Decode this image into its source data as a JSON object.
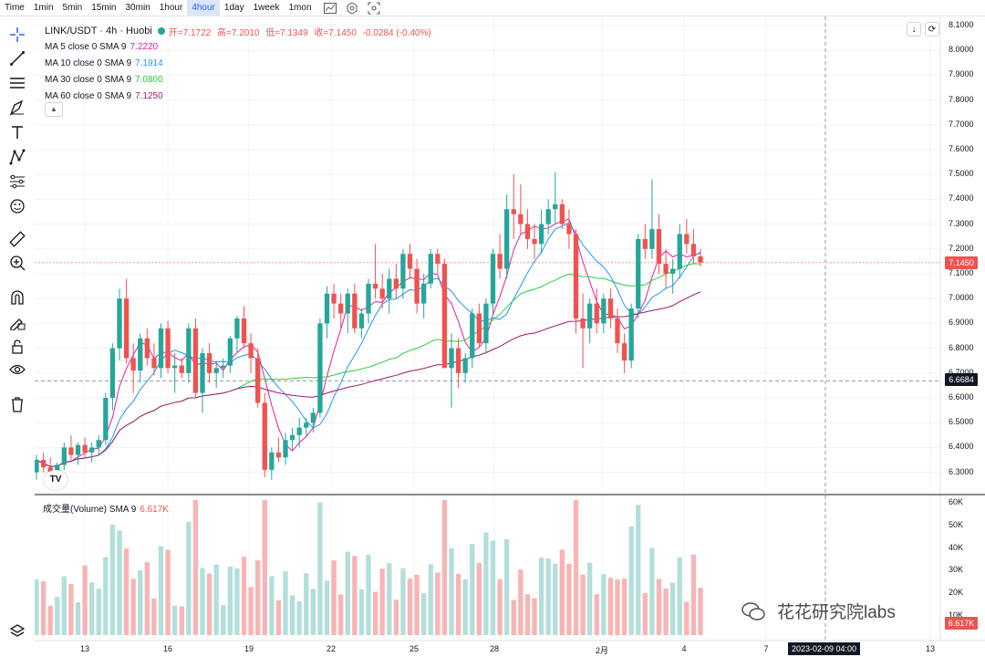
{
  "timeframes": [
    "Time",
    "1min",
    "5min",
    "15min",
    "30min",
    "1hour",
    "4hour",
    "1day",
    "1week",
    "1mon"
  ],
  "active_timeframe": "4hour",
  "toolbar_icons": [
    "indicator-icon",
    "settings-icon",
    "fullscreen-icon"
  ],
  "left_tools": [
    "crosshair-icon",
    "trendline-icon",
    "horizontal-lines-icon",
    "brush-icon",
    "text-icon",
    "pattern-icon",
    "fib-icon",
    "emoji-icon",
    "ruler-icon",
    "zoom-in-icon",
    "magnet-icon",
    "lock-drawing-icon",
    "lock-icon",
    "eye-icon",
    "trash-icon"
  ],
  "legend": {
    "symbol": "LINK/USDT · 4h · Huobi",
    "open": "开=7.1722",
    "high": "高=7.2010",
    "low": "低=7.1349",
    "close": "收=7.1450",
    "change": "-0.0284 (-0.40%)"
  },
  "moving_averages": [
    {
      "label": "MA 5 close 0 SMA 9",
      "value": "7.2220",
      "color": "#e91e9c"
    },
    {
      "label": "MA 10 close 0 SMA 9",
      "value": "7.1914",
      "color": "#2196f3"
    },
    {
      "label": "MA 30 close 0 SMA 9",
      "value": "7.0800",
      "color": "#2ecc40"
    },
    {
      "label": "MA 60 close 0 SMA 9",
      "value": "7.1250",
      "color": "#a0196e"
    }
  ],
  "volume_legend": {
    "label": "成交量(Volume) SMA 9",
    "value": "6.617K"
  },
  "price_axis": [
    "8.1000",
    "8.0000",
    "7.9000",
    "7.8000",
    "7.7000",
    "7.6000",
    "7.5000",
    "7.4000",
    "7.3000",
    "7.2000",
    "7.1000",
    "7.0000",
    "6.9000",
    "6.8000",
    "6.7000",
    "6.6000",
    "6.5000",
    "6.4000",
    "6.3000"
  ],
  "volume_axis": [
    "60K",
    "50K",
    "40K",
    "30K",
    "20K",
    "10K"
  ],
  "current_price_tag": "7.1450",
  "crosshair_price_tag": "6.6684",
  "volume_tag": "6.617K",
  "x_axis_labels": [
    "13",
    "16",
    "19",
    "22",
    "25",
    "28",
    "2月",
    "4",
    "7",
    "13"
  ],
  "crosshair_date": "2023-02-09   04:00",
  "watermark": "花花研究院labs",
  "colors": {
    "up": "#26a69a",
    "down": "#ef5350",
    "up_vol": "#b2dfdb",
    "down_vol": "#f8b4b4"
  },
  "chart_data": {
    "type": "candlestick",
    "series_ohlc": [
      [
        6.3,
        6.37,
        6.27,
        6.35
      ],
      [
        6.35,
        6.38,
        6.3,
        6.32
      ],
      [
        6.32,
        6.36,
        6.28,
        6.3
      ],
      [
        6.3,
        6.34,
        6.25,
        6.33
      ],
      [
        6.33,
        6.42,
        6.31,
        6.4
      ],
      [
        6.4,
        6.45,
        6.35,
        6.37
      ],
      [
        6.37,
        6.42,
        6.33,
        6.41
      ],
      [
        6.41,
        6.44,
        6.36,
        6.38
      ],
      [
        6.38,
        6.42,
        6.34,
        6.4
      ],
      [
        6.4,
        6.45,
        6.37,
        6.43
      ],
      [
        6.43,
        6.62,
        6.41,
        6.6
      ],
      [
        6.6,
        6.82,
        6.55,
        6.8
      ],
      [
        6.8,
        7.04,
        6.75,
        7.0
      ],
      [
        7.0,
        7.08,
        6.74,
        6.76
      ],
      [
        6.76,
        6.82,
        6.62,
        6.71
      ],
      [
        6.71,
        6.86,
        6.66,
        6.84
      ],
      [
        6.84,
        6.88,
        6.73,
        6.76
      ],
      [
        6.76,
        6.82,
        6.69,
        6.72
      ],
      [
        6.72,
        6.9,
        6.68,
        6.88
      ],
      [
        6.88,
        6.91,
        6.7,
        6.72
      ],
      [
        6.72,
        6.78,
        6.62,
        6.73
      ],
      [
        6.73,
        6.76,
        6.68,
        6.7
      ],
      [
        6.7,
        6.9,
        6.66,
        6.88
      ],
      [
        6.88,
        6.92,
        6.6,
        6.62
      ],
      [
        6.62,
        6.8,
        6.54,
        6.78
      ],
      [
        6.78,
        6.82,
        6.66,
        6.7
      ],
      [
        6.7,
        6.75,
        6.64,
        6.72
      ],
      [
        6.72,
        6.76,
        6.68,
        6.73
      ],
      [
        6.73,
        6.85,
        6.7,
        6.84
      ],
      [
        6.84,
        6.93,
        6.78,
        6.92
      ],
      [
        6.92,
        6.97,
        6.8,
        6.82
      ],
      [
        6.82,
        6.86,
        6.7,
        6.76
      ],
      [
        6.76,
        6.8,
        6.56,
        6.58
      ],
      [
        6.58,
        6.62,
        6.28,
        6.31
      ],
      [
        6.31,
        6.4,
        6.27,
        6.38
      ],
      [
        6.38,
        6.44,
        6.34,
        6.36
      ],
      [
        6.36,
        6.46,
        6.33,
        6.43
      ],
      [
        6.43,
        6.48,
        6.39,
        6.45
      ],
      [
        6.45,
        6.52,
        6.4,
        6.48
      ],
      [
        6.48,
        6.52,
        6.44,
        6.5
      ],
      [
        6.5,
        6.56,
        6.46,
        6.54
      ],
      [
        6.54,
        6.92,
        6.52,
        6.9
      ],
      [
        6.9,
        7.05,
        6.84,
        7.02
      ],
      [
        7.02,
        7.06,
        6.92,
        6.98
      ],
      [
        6.98,
        7.02,
        6.88,
        6.94
      ],
      [
        6.94,
        7.04,
        6.86,
        7.02
      ],
      [
        7.02,
        7.06,
        6.86,
        6.88
      ],
      [
        6.88,
        6.96,
        6.84,
        6.94
      ],
      [
        6.94,
        7.08,
        6.9,
        7.06
      ],
      [
        7.06,
        7.22,
        7.0,
        7.04
      ],
      [
        7.04,
        7.1,
        6.96,
        7.0
      ],
      [
        7.0,
        7.12,
        6.94,
        7.08
      ],
      [
        7.08,
        7.14,
        7.0,
        7.04
      ],
      [
        7.04,
        7.2,
        7.0,
        7.18
      ],
      [
        7.18,
        7.22,
        7.08,
        7.12
      ],
      [
        7.12,
        7.16,
        6.94,
        6.98
      ],
      [
        6.98,
        7.1,
        6.92,
        7.06
      ],
      [
        7.06,
        7.2,
        7.04,
        7.18
      ],
      [
        7.18,
        7.2,
        7.1,
        7.14
      ],
      [
        7.14,
        7.16,
        6.72,
        6.72
      ],
      [
        6.72,
        6.86,
        6.56,
        6.8
      ],
      [
        6.8,
        6.84,
        6.64,
        6.7
      ],
      [
        6.7,
        6.78,
        6.66,
        6.76
      ],
      [
        6.76,
        6.96,
        6.72,
        6.94
      ],
      [
        6.94,
        6.98,
        6.8,
        6.82
      ],
      [
        6.82,
        7.0,
        6.78,
        6.98
      ],
      [
        6.98,
        7.2,
        6.94,
        7.18
      ],
      [
        7.18,
        7.26,
        7.08,
        7.12
      ],
      [
        7.12,
        7.42,
        7.08,
        7.36
      ],
      [
        7.36,
        7.5,
        7.24,
        7.34
      ],
      [
        7.34,
        7.46,
        7.26,
        7.3
      ],
      [
        7.3,
        7.36,
        7.2,
        7.24
      ],
      [
        7.24,
        7.3,
        7.16,
        7.22
      ],
      [
        7.22,
        7.36,
        7.18,
        7.3
      ],
      [
        7.3,
        7.4,
        7.26,
        7.36
      ],
      [
        7.36,
        7.51,
        7.3,
        7.38
      ],
      [
        7.38,
        7.4,
        7.28,
        7.3
      ],
      [
        7.3,
        7.36,
        7.2,
        7.26
      ],
      [
        7.26,
        7.28,
        6.86,
        6.92
      ],
      [
        6.92,
        7.02,
        6.72,
        6.88
      ],
      [
        6.88,
        7.0,
        6.82,
        6.98
      ],
      [
        6.98,
        7.04,
        6.86,
        6.9
      ],
      [
        6.9,
        7.02,
        6.86,
        7.0
      ],
      [
        7.0,
        7.04,
        6.88,
        6.92
      ],
      [
        6.92,
        6.96,
        6.78,
        6.82
      ],
      [
        6.82,
        6.86,
        6.7,
        6.75
      ],
      [
        6.75,
        6.98,
        6.72,
        6.96
      ],
      [
        6.96,
        7.26,
        6.92,
        7.24
      ],
      [
        7.24,
        7.3,
        7.16,
        7.2
      ],
      [
        7.2,
        7.48,
        7.16,
        7.28
      ],
      [
        7.28,
        7.34,
        7.1,
        7.14
      ],
      [
        7.14,
        7.2,
        7.04,
        7.1
      ],
      [
        7.1,
        7.16,
        7.02,
        7.12
      ],
      [
        7.12,
        7.3,
        7.08,
        7.26
      ],
      [
        7.26,
        7.32,
        7.18,
        7.22
      ],
      [
        7.22,
        7.28,
        7.14,
        7.17
      ],
      [
        7.17,
        7.2,
        7.13,
        7.145
      ]
    ]
  }
}
